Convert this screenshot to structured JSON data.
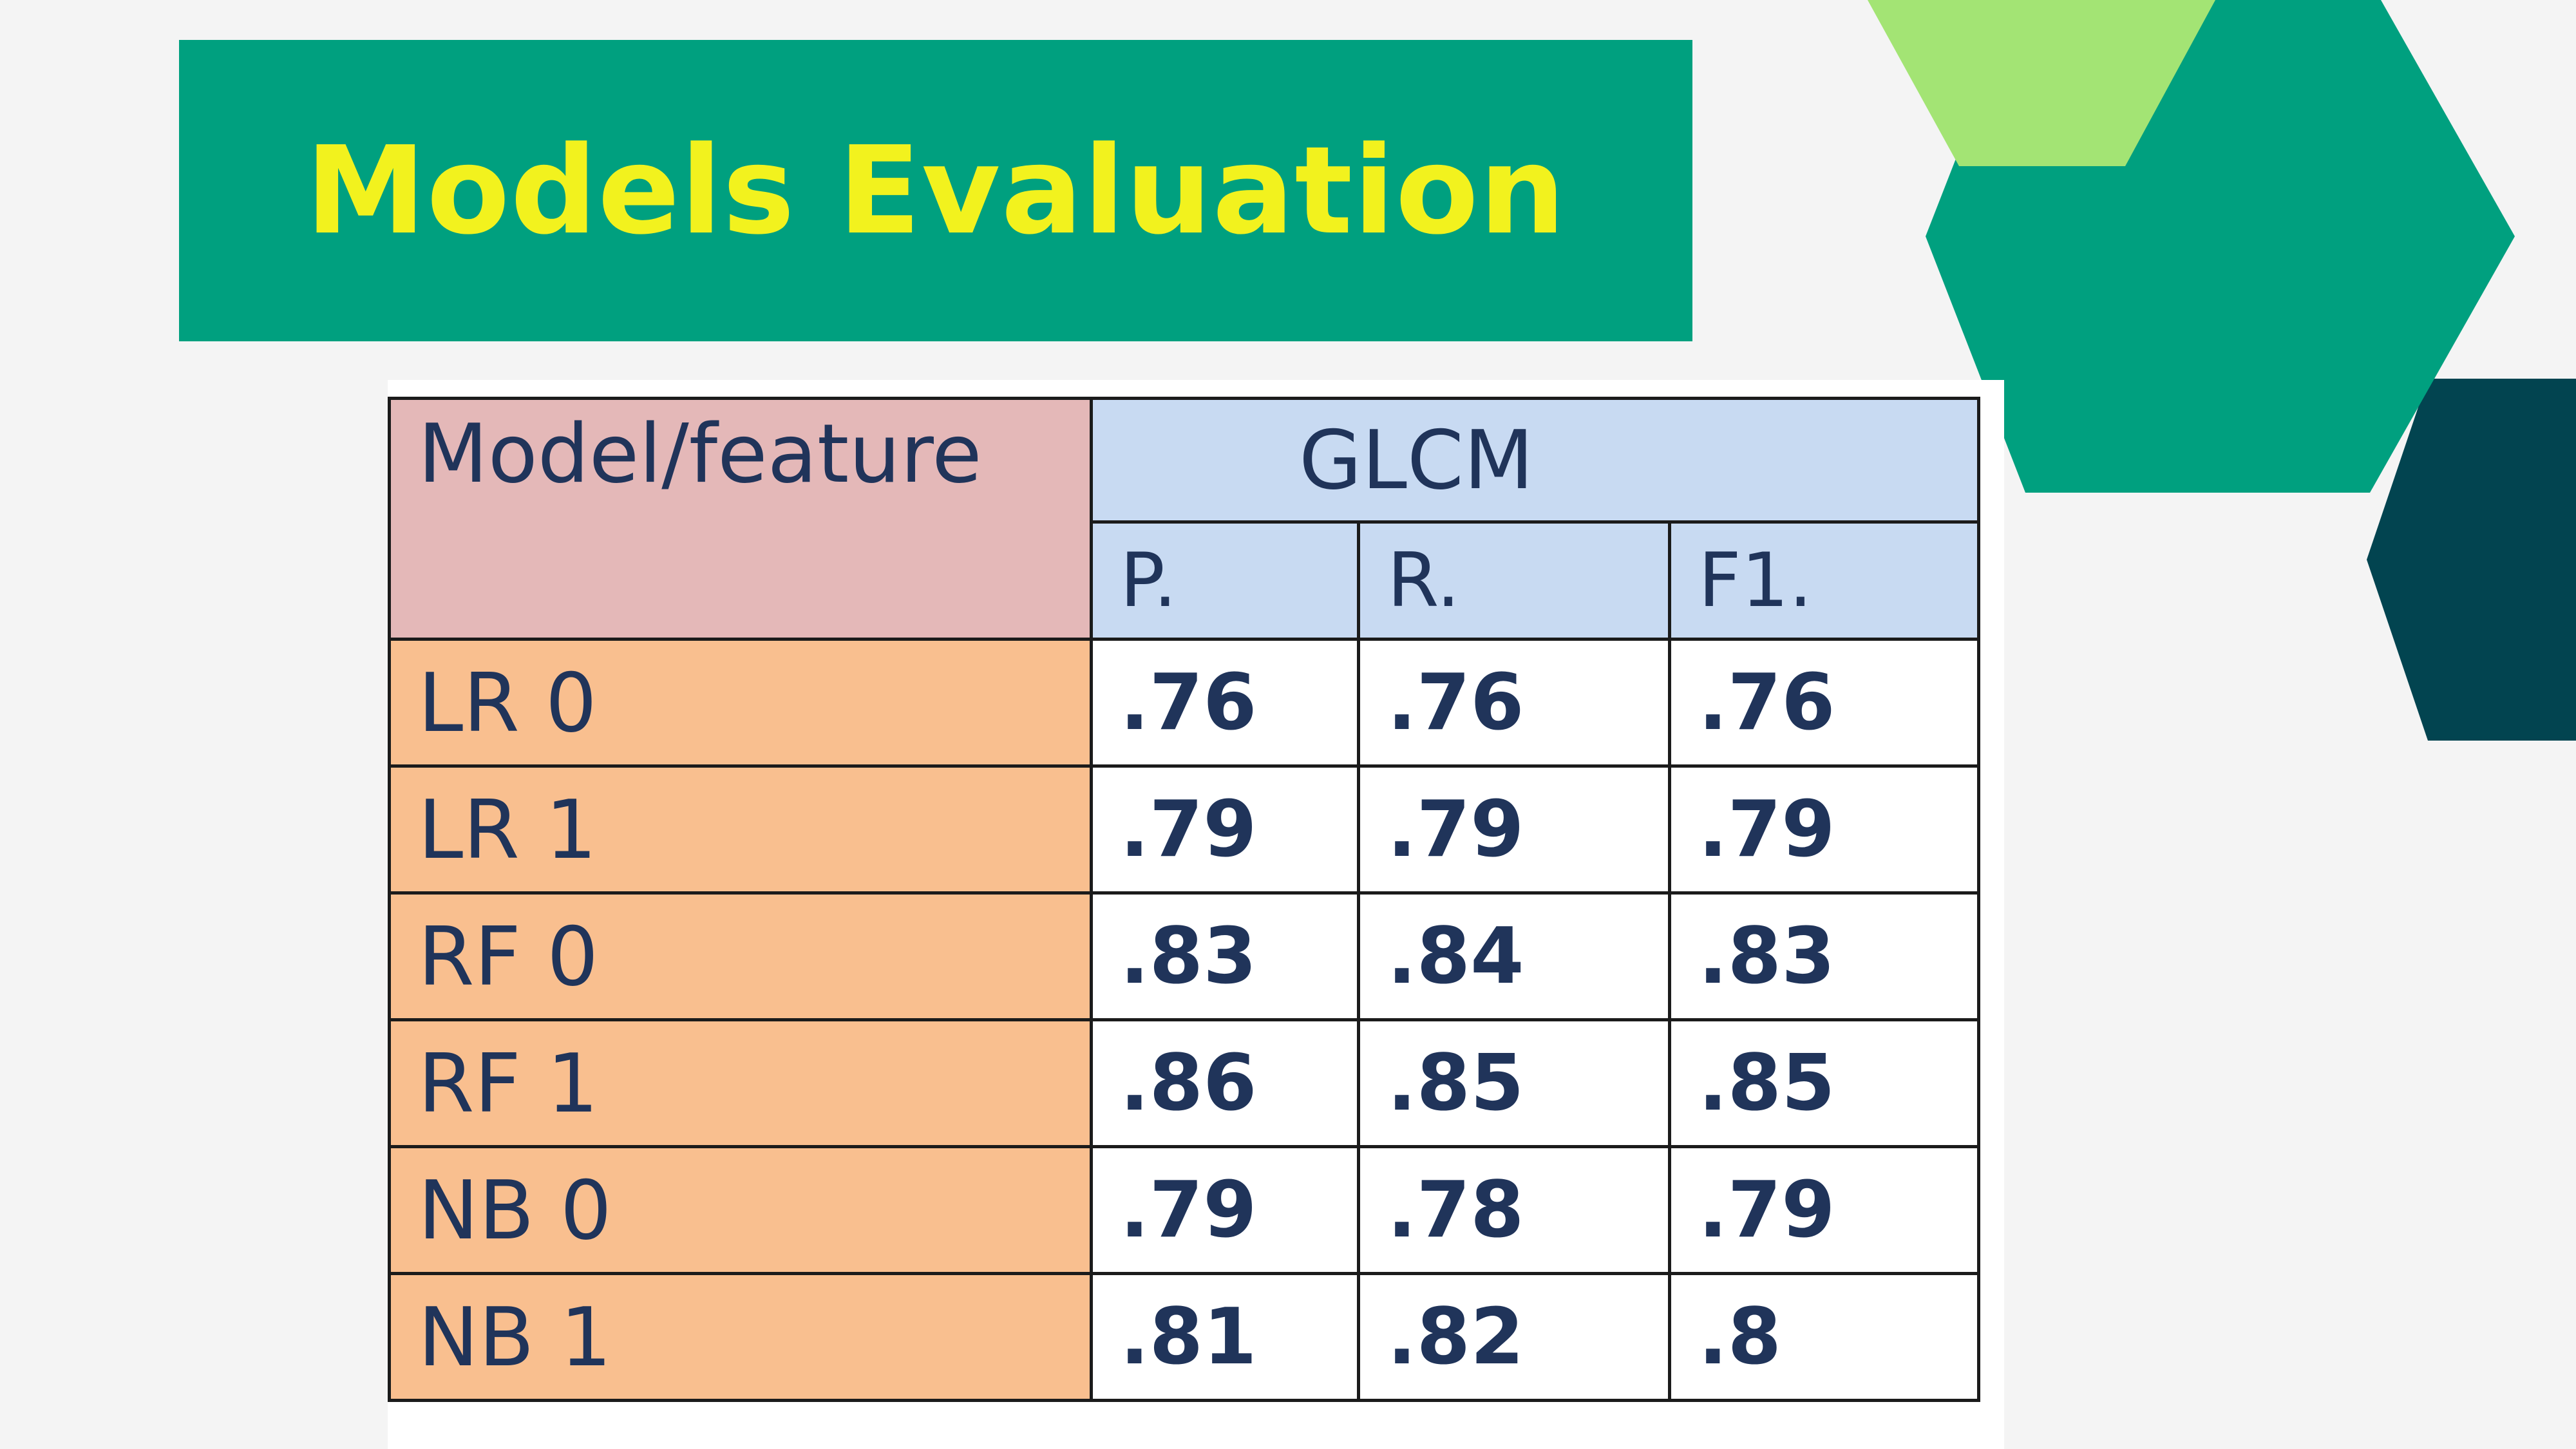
{
  "slide": {
    "title": "Models Evaluation",
    "colors": {
      "background": "#f4f4f4",
      "banner": "#00a07f",
      "title_text": "#f2f21e",
      "hex_light": "#a3e474",
      "hex_main": "#00a07f",
      "hex_dark": "#024450"
    }
  },
  "table": {
    "model_header": "Model/feature",
    "group_header": "GLCM",
    "metrics": [
      "P.",
      "R.",
      "F1."
    ],
    "rows": [
      {
        "label": "LR 0",
        "values": [
          ".76",
          ".76",
          ".76"
        ]
      },
      {
        "label": "LR 1",
        "values": [
          ".79",
          ".79",
          ".79"
        ]
      },
      {
        "label": "RF 0",
        "values": [
          ".83",
          ".84",
          ".83"
        ]
      },
      {
        "label": "RF 1",
        "values": [
          ".86",
          ".85",
          ".85"
        ]
      },
      {
        "label": "NB 0",
        "values": [
          ".79",
          ".78",
          ".79"
        ]
      },
      {
        "label": "NB 1",
        "values": [
          ".81",
          ".82",
          ".8"
        ]
      }
    ],
    "colors": {
      "model_header_bg": "#e4b8b8",
      "group_header_bg": "#c8daf2",
      "row_label_bg": "#f9bf8f",
      "text": "#20345a"
    }
  }
}
